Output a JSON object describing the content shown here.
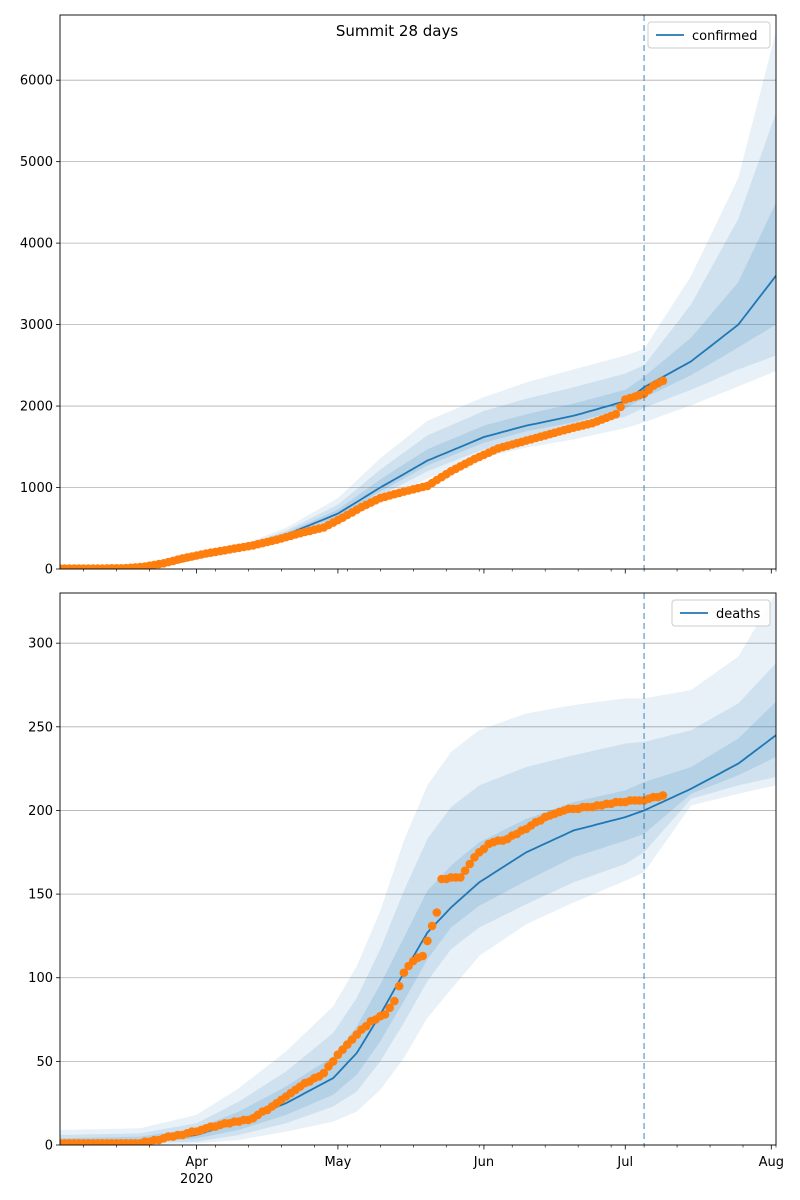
{
  "chart_data": [
    {
      "type": "line",
      "title": "Summit 28 days",
      "xlabel": "",
      "ylabel": "",
      "x_axis": {
        "type": "date",
        "range": [
          "2020-03-03",
          "2020-08-02"
        ],
        "tick_labels": [
          {
            "date": "2020-04-01",
            "label": "Apr",
            "sublabel": "2020"
          },
          {
            "date": "2020-05-01",
            "label": "May"
          },
          {
            "date": "2020-06-01",
            "label": "Jun"
          },
          {
            "date": "2020-07-01",
            "label": "Jul"
          },
          {
            "date": "2020-08-01",
            "label": "Aug"
          }
        ]
      },
      "ylim": [
        0,
        6800
      ],
      "yticks": [
        0,
        1000,
        2000,
        3000,
        4000,
        5000,
        6000
      ],
      "grid": "horizontal",
      "legend_position": "top-right",
      "forecast_start": "2020-07-05",
      "colors": {
        "model": "#1f77b4",
        "observed": "#ff7f0e",
        "band": "#1f77b4"
      },
      "series": [
        {
          "name": "confirmed",
          "kind": "model-median",
          "x": [
            "2020-03-03",
            "2020-03-15",
            "2020-03-25",
            "2020-04-01",
            "2020-04-10",
            "2020-04-20",
            "2020-05-01",
            "2020-05-10",
            "2020-05-20",
            "2020-06-01",
            "2020-06-10",
            "2020-06-20",
            "2020-07-01",
            "2020-07-05",
            "2020-07-15",
            "2020-07-25",
            "2020-08-02"
          ],
          "y": [
            0,
            5,
            40,
            130,
            250,
            420,
            680,
            1000,
            1330,
            1620,
            1760,
            1880,
            2060,
            2230,
            2550,
            3000,
            3600
          ],
          "bands": [
            {
              "lower": [
                0,
                4,
                35,
                115,
                220,
                360,
                560,
                830,
                1110,
                1370,
                1490,
                1590,
                1730,
                1800,
                2010,
                2240,
                2430
              ],
              "upper": [
                0,
                6,
                45,
                145,
                285,
                505,
                870,
                1360,
                1820,
                2110,
                2290,
                2450,
                2620,
                2700,
                3600,
                4800,
                6600
              ]
            },
            {
              "lower": [
                0,
                4,
                37,
                120,
                232,
                385,
                610,
                900,
                1200,
                1470,
                1600,
                1710,
                1870,
                1980,
                2200,
                2450,
                2620
              ],
              "upper": [
                0,
                6,
                43,
                140,
                270,
                470,
                790,
                1220,
                1640,
                1940,
                2090,
                2230,
                2400,
                2500,
                3250,
                4300,
                5600
              ]
            },
            {
              "lower": [
                0,
                5,
                38,
                125,
                240,
                400,
                640,
                950,
                1270,
                1550,
                1690,
                1800,
                1970,
                2100,
                2380,
                2720,
                3000
              ],
              "upper": [
                0,
                5,
                42,
                135,
                262,
                445,
                730,
                1100,
                1470,
                1760,
                1900,
                2030,
                2200,
                2360,
                2840,
                3520,
                4500
              ]
            }
          ]
        },
        {
          "name": "",
          "kind": "observed",
          "x": [
            "2020-03-03",
            "2020-03-10",
            "2020-03-17",
            "2020-03-21",
            "2020-03-25",
            "2020-03-29",
            "2020-04-03",
            "2020-04-08",
            "2020-04-13",
            "2020-04-18",
            "2020-04-23",
            "2020-04-28",
            "2020-05-02",
            "2020-05-06",
            "2020-05-10",
            "2020-05-15",
            "2020-05-20",
            "2020-05-25",
            "2020-05-30",
            "2020-06-04",
            "2020-06-09",
            "2020-06-14",
            "2020-06-19",
            "2020-06-24",
            "2020-06-29",
            "2020-07-01",
            "2020-07-05",
            "2020-07-07",
            "2020-07-09"
          ],
          "y": [
            5,
            5,
            10,
            30,
            70,
            130,
            190,
            240,
            290,
            360,
            440,
            510,
            630,
            760,
            870,
            950,
            1020,
            1200,
            1350,
            1480,
            1560,
            1640,
            1720,
            1790,
            1900,
            2080,
            2150,
            2250,
            2310
          ]
        }
      ]
    },
    {
      "type": "line",
      "title": "",
      "xlabel": "",
      "ylabel": "",
      "x_axis": {
        "type": "date",
        "range": [
          "2020-03-03",
          "2020-08-02"
        ],
        "tick_labels": [
          {
            "date": "2020-04-01",
            "label": "Apr",
            "sublabel": "2020"
          },
          {
            "date": "2020-05-01",
            "label": "May"
          },
          {
            "date": "2020-06-01",
            "label": "Jun"
          },
          {
            "date": "2020-07-01",
            "label": "Jul"
          },
          {
            "date": "2020-08-01",
            "label": "Aug"
          }
        ]
      },
      "ylim": [
        0,
        330
      ],
      "yticks": [
        0,
        50,
        100,
        150,
        200,
        250,
        300
      ],
      "grid": "horizontal",
      "legend_position": "top-right",
      "forecast_start": "2020-07-05",
      "colors": {
        "model": "#1f77b4",
        "observed": "#ff7f0e",
        "band": "#1f77b4"
      },
      "series": [
        {
          "name": "deaths",
          "kind": "model-median",
          "x": [
            "2020-03-03",
            "2020-03-20",
            "2020-04-01",
            "2020-04-10",
            "2020-04-20",
            "2020-04-30",
            "2020-05-05",
            "2020-05-10",
            "2020-05-15",
            "2020-05-20",
            "2020-05-25",
            "2020-05-31",
            "2020-06-10",
            "2020-06-20",
            "2020-07-01",
            "2020-07-05",
            "2020-07-15",
            "2020-07-25",
            "2020-08-02"
          ],
          "y": [
            1,
            2,
            6,
            14,
            25,
            40,
            55,
            78,
            103,
            127,
            142,
            157,
            175,
            188,
            196,
            200,
            213,
            228,
            245
          ],
          "bands": [
            {
              "lower": [
                0,
                0,
                1,
                3,
                8,
                14,
                20,
                33,
                52,
                76,
                93,
                113,
                132,
                145,
                158,
                163,
                203,
                210,
                215
              ],
              "upper": [
                9,
                10,
                18,
                34,
                56,
                83,
                107,
                140,
                182,
                215,
                235,
                248,
                258,
                263,
                267,
                267,
                272,
                292,
                330
              ]
            },
            {
              "lower": [
                0,
                1,
                2,
                6,
                13,
                23,
                32,
                50,
                73,
                98,
                117,
                130,
                144,
                157,
                168,
                175,
                207,
                215,
                220
              ],
              "upper": [
                6,
                7,
                13,
                26,
                44,
                67,
                88,
                117,
                152,
                183,
                202,
                215,
                226,
                233,
                240,
                241,
                248,
                264,
                288
              ]
            },
            {
              "lower": [
                0,
                1,
                4,
                9,
                18,
                30,
                42,
                62,
                86,
                111,
                130,
                143,
                158,
                172,
                182,
                186,
                210,
                221,
                232
              ],
              "upper": [
                4,
                5,
                10,
                20,
                35,
                53,
                71,
                96,
                124,
                152,
                167,
                181,
                195,
                205,
                212,
                217,
                226,
                243,
                265
              ]
            }
          ]
        },
        {
          "name": "",
          "kind": "observed",
          "x": [
            "2020-03-03",
            "2020-03-20",
            "2020-03-25",
            "2020-03-30",
            "2020-04-06",
            "2020-04-13",
            "2020-04-18",
            "2020-04-23",
            "2020-04-28",
            "2020-05-02",
            "2020-05-05",
            "2020-05-08",
            "2020-05-11",
            "2020-05-13",
            "2020-05-15",
            "2020-05-17",
            "2020-05-19",
            "2020-05-21",
            "2020-05-22",
            "2020-05-23",
            "2020-05-27",
            "2020-05-30",
            "2020-06-02",
            "2020-06-06",
            "2020-06-11",
            "2020-06-15",
            "2020-06-19",
            "2020-06-24",
            "2020-06-29",
            "2020-07-05",
            "2020-07-09"
          ],
          "y": [
            1,
            1,
            4,
            7,
            12,
            16,
            25,
            35,
            43,
            57,
            66,
            74,
            78,
            86,
            103,
            110,
            113,
            131,
            139,
            159,
            160,
            172,
            180,
            183,
            191,
            197,
            201,
            202,
            205,
            206,
            209
          ]
        }
      ]
    }
  ]
}
